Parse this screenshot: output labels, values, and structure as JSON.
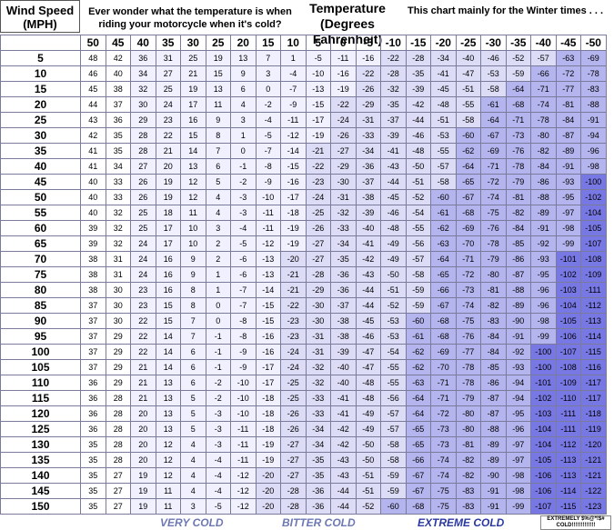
{
  "header": {
    "wind_label_line1": "Wind Speed",
    "wind_label_line2": "(MPH)",
    "note_left": "Ever wonder what the temperature is when riding your motorcycle when it's cold?",
    "temp_title_line1": "Temperature",
    "temp_title_line2": "(Degrees Fahrenheit)",
    "note_right": "This chart mainly for the Winter times . . ."
  },
  "columns": [
    "50",
    "45",
    "40",
    "35",
    "30",
    "25",
    "20",
    "15",
    "10",
    "5",
    "0",
    "-5",
    "-10",
    "-15",
    "-20",
    "-25",
    "-30",
    "-35",
    "-40",
    "-45",
    "-50"
  ],
  "rows": [
    {
      "wind": "5",
      "values": [
        "48",
        "42",
        "36",
        "31",
        "25",
        "19",
        "13",
        "7",
        "1",
        "-5",
        "-11",
        "-16",
        "-22",
        "-28",
        "-34",
        "-40",
        "-46",
        "-52",
        "-57",
        "-63",
        "-69"
      ]
    },
    {
      "wind": "10",
      "values": [
        "46",
        "40",
        "34",
        "27",
        "21",
        "15",
        "9",
        "3",
        "-4",
        "-10",
        "-16",
        "-22",
        "-28",
        "-35",
        "-41",
        "-47",
        "-53",
        "-59",
        "-66",
        "-72",
        "-78"
      ]
    },
    {
      "wind": "15",
      "values": [
        "45",
        "38",
        "32",
        "25",
        "19",
        "13",
        "6",
        "0",
        "-7",
        "-13",
        "-19",
        "-26",
        "-32",
        "-39",
        "-45",
        "-51",
        "-58",
        "-64",
        "-71",
        "-77",
        "-83"
      ]
    },
    {
      "wind": "20",
      "values": [
        "44",
        "37",
        "30",
        "24",
        "17",
        "11",
        "4",
        "-2",
        "-9",
        "-15",
        "-22",
        "-29",
        "-35",
        "-42",
        "-48",
        "-55",
        "-61",
        "-68",
        "-74",
        "-81",
        "-88"
      ]
    },
    {
      "wind": "25",
      "values": [
        "43",
        "36",
        "29",
        "23",
        "16",
        "9",
        "3",
        "-4",
        "-11",
        "-17",
        "-24",
        "-31",
        "-37",
        "-44",
        "-51",
        "-58",
        "-64",
        "-71",
        "-78",
        "-84",
        "-91"
      ]
    },
    {
      "wind": "30",
      "values": [
        "42",
        "35",
        "28",
        "22",
        "15",
        "8",
        "1",
        "-5",
        "-12",
        "-19",
        "-26",
        "-33",
        "-39",
        "-46",
        "-53",
        "-60",
        "-67",
        "-73",
        "-80",
        "-87",
        "-94"
      ]
    },
    {
      "wind": "35",
      "values": [
        "41",
        "35",
        "28",
        "21",
        "14",
        "7",
        "0",
        "-7",
        "-14",
        "-21",
        "-27",
        "-34",
        "-41",
        "-48",
        "-55",
        "-62",
        "-69",
        "-76",
        "-82",
        "-89",
        "-96"
      ]
    },
    {
      "wind": "40",
      "values": [
        "41",
        "34",
        "27",
        "20",
        "13",
        "6",
        "-1",
        "-8",
        "-15",
        "-22",
        "-29",
        "-36",
        "-43",
        "-50",
        "-57",
        "-64",
        "-71",
        "-78",
        "-84",
        "-91",
        "-98"
      ]
    },
    {
      "wind": "45",
      "values": [
        "40",
        "33",
        "26",
        "19",
        "12",
        "5",
        "-2",
        "-9",
        "-16",
        "-23",
        "-30",
        "-37",
        "-44",
        "-51",
        "-58",
        "-65",
        "-72",
        "-79",
        "-86",
        "-93",
        "-100"
      ]
    },
    {
      "wind": "50",
      "values": [
        "40",
        "33",
        "26",
        "19",
        "12",
        "4",
        "-3",
        "-10",
        "-17",
        "-24",
        "-31",
        "-38",
        "-45",
        "-52",
        "-60",
        "-67",
        "-74",
        "-81",
        "-88",
        "-95",
        "-102"
      ]
    },
    {
      "wind": "55",
      "values": [
        "40",
        "32",
        "25",
        "18",
        "11",
        "4",
        "-3",
        "-11",
        "-18",
        "-25",
        "-32",
        "-39",
        "-46",
        "-54",
        "-61",
        "-68",
        "-75",
        "-82",
        "-89",
        "-97",
        "-104"
      ]
    },
    {
      "wind": "60",
      "values": [
        "39",
        "32",
        "25",
        "17",
        "10",
        "3",
        "-4",
        "-11",
        "-19",
        "-26",
        "-33",
        "-40",
        "-48",
        "-55",
        "-62",
        "-69",
        "-76",
        "-84",
        "-91",
        "-98",
        "-105"
      ]
    },
    {
      "wind": "65",
      "values": [
        "39",
        "32",
        "24",
        "17",
        "10",
        "2",
        "-5",
        "-12",
        "-19",
        "-27",
        "-34",
        "-41",
        "-49",
        "-56",
        "-63",
        "-70",
        "-78",
        "-85",
        "-92",
        "-99",
        "-107"
      ]
    },
    {
      "wind": "70",
      "values": [
        "38",
        "31",
        "24",
        "16",
        "9",
        "2",
        "-6",
        "-13",
        "-20",
        "-27",
        "-35",
        "-42",
        "-49",
        "-57",
        "-64",
        "-71",
        "-79",
        "-86",
        "-93",
        "-101",
        "-108"
      ]
    },
    {
      "wind": "75",
      "values": [
        "38",
        "31",
        "24",
        "16",
        "9",
        "1",
        "-6",
        "-13",
        "-21",
        "-28",
        "-36",
        "-43",
        "-50",
        "-58",
        "-65",
        "-72",
        "-80",
        "-87",
        "-95",
        "-102",
        "-109"
      ]
    },
    {
      "wind": "80",
      "values": [
        "38",
        "30",
        "23",
        "16",
        "8",
        "1",
        "-7",
        "-14",
        "-21",
        "-29",
        "-36",
        "-44",
        "-51",
        "-59",
        "-66",
        "-73",
        "-81",
        "-88",
        "-96",
        "-103",
        "-111"
      ]
    },
    {
      "wind": "85",
      "values": [
        "37",
        "30",
        "23",
        "15",
        "8",
        "0",
        "-7",
        "-15",
        "-22",
        "-30",
        "-37",
        "-44",
        "-52",
        "-59",
        "-67",
        "-74",
        "-82",
        "-89",
        "-96",
        "-104",
        "-112"
      ]
    },
    {
      "wind": "90",
      "values": [
        "37",
        "30",
        "22",
        "15",
        "7",
        "0",
        "-8",
        "-15",
        "-23",
        "-30",
        "-38",
        "-45",
        "-53",
        "-60",
        "-68",
        "-75",
        "-83",
        "-90",
        "-98",
        "-105",
        "-113"
      ]
    },
    {
      "wind": "95",
      "values": [
        "37",
        "29",
        "22",
        "14",
        "7",
        "-1",
        "-8",
        "-16",
        "-23",
        "-31",
        "-38",
        "-46",
        "-53",
        "-61",
        "-68",
        "-76",
        "-84",
        "-91",
        "-99",
        "-106",
        "-114"
      ]
    },
    {
      "wind": "100",
      "values": [
        "37",
        "29",
        "22",
        "14",
        "6",
        "-1",
        "-9",
        "-16",
        "-24",
        "-31",
        "-39",
        "-47",
        "-54",
        "-62",
        "-69",
        "-77",
        "-84",
        "-92",
        "-100",
        "-107",
        "-115"
      ]
    },
    {
      "wind": "105",
      "values": [
        "37",
        "29",
        "21",
        "14",
        "6",
        "-1",
        "-9",
        "-17",
        "-24",
        "-32",
        "-40",
        "-47",
        "-55",
        "-62",
        "-70",
        "-78",
        "-85",
        "-93",
        "-100",
        "-108",
        "-116"
      ]
    },
    {
      "wind": "110",
      "values": [
        "36",
        "29",
        "21",
        "13",
        "6",
        "-2",
        "-10",
        "-17",
        "-25",
        "-32",
        "-40",
        "-48",
        "-55",
        "-63",
        "-71",
        "-78",
        "-86",
        "-94",
        "-101",
        "-109",
        "-117"
      ]
    },
    {
      "wind": "115",
      "values": [
        "36",
        "28",
        "21",
        "13",
        "5",
        "-2",
        "-10",
        "-18",
        "-25",
        "-33",
        "-41",
        "-48",
        "-56",
        "-64",
        "-71",
        "-79",
        "-87",
        "-94",
        "-102",
        "-110",
        "-117"
      ]
    },
    {
      "wind": "120",
      "values": [
        "36",
        "28",
        "20",
        "13",
        "5",
        "-3",
        "-10",
        "-18",
        "-26",
        "-33",
        "-41",
        "-49",
        "-57",
        "-64",
        "-72",
        "-80",
        "-87",
        "-95",
        "-103",
        "-111",
        "-118"
      ]
    },
    {
      "wind": "125",
      "values": [
        "36",
        "28",
        "20",
        "13",
        "5",
        "-3",
        "-11",
        "-18",
        "-26",
        "-34",
        "-42",
        "-49",
        "-57",
        "-65",
        "-73",
        "-80",
        "-88",
        "-96",
        "-104",
        "-111",
        "-119"
      ]
    },
    {
      "wind": "130",
      "values": [
        "35",
        "28",
        "20",
        "12",
        "4",
        "-3",
        "-11",
        "-19",
        "-27",
        "-34",
        "-42",
        "-50",
        "-58",
        "-65",
        "-73",
        "-81",
        "-89",
        "-97",
        "-104",
        "-112",
        "-120"
      ]
    },
    {
      "wind": "135",
      "values": [
        "35",
        "28",
        "20",
        "12",
        "4",
        "-4",
        "-11",
        "-19",
        "-27",
        "-35",
        "-43",
        "-50",
        "-58",
        "-66",
        "-74",
        "-82",
        "-89",
        "-97",
        "-105",
        "-113",
        "-121"
      ]
    },
    {
      "wind": "140",
      "values": [
        "35",
        "27",
        "19",
        "12",
        "4",
        "-4",
        "-12",
        "-20",
        "-27",
        "-35",
        "-43",
        "-51",
        "-59",
        "-67",
        "-74",
        "-82",
        "-90",
        "-98",
        "-106",
        "-113",
        "-121"
      ]
    },
    {
      "wind": "145",
      "values": [
        "35",
        "27",
        "19",
        "11",
        "4",
        "-4",
        "-12",
        "-20",
        "-28",
        "-36",
        "-44",
        "-51",
        "-59",
        "-67",
        "-75",
        "-83",
        "-91",
        "-98",
        "-106",
        "-114",
        "-122"
      ]
    },
    {
      "wind": "150",
      "values": [
        "35",
        "27",
        "19",
        "11",
        "3",
        "-5",
        "-12",
        "-20",
        "-28",
        "-36",
        "-44",
        "-52",
        "-60",
        "-68",
        "-75",
        "-83",
        "-91",
        "-99",
        "-107",
        "-115",
        "-123"
      ]
    }
  ],
  "footer": {
    "very_cold": "VERY COLD",
    "bitter_cold": "BITTER COLD",
    "extreme_cold": "EXTREME COLD",
    "note": "EXTREMELY $%@*!$# COLD!!!!!!!!!!!!!"
  },
  "colors": {
    "text": "#000000",
    "border": "#7a7a9a",
    "very_cold_bg": "#f0f0ff",
    "bitter_cold_bg": "#dcdcf6",
    "extreme_cold_bg": "#b4b4ee",
    "extremely_cold_bg": "#7878e4",
    "very_cold_label": "#6d78b4",
    "extreme_label": "#2a38a0"
  }
}
